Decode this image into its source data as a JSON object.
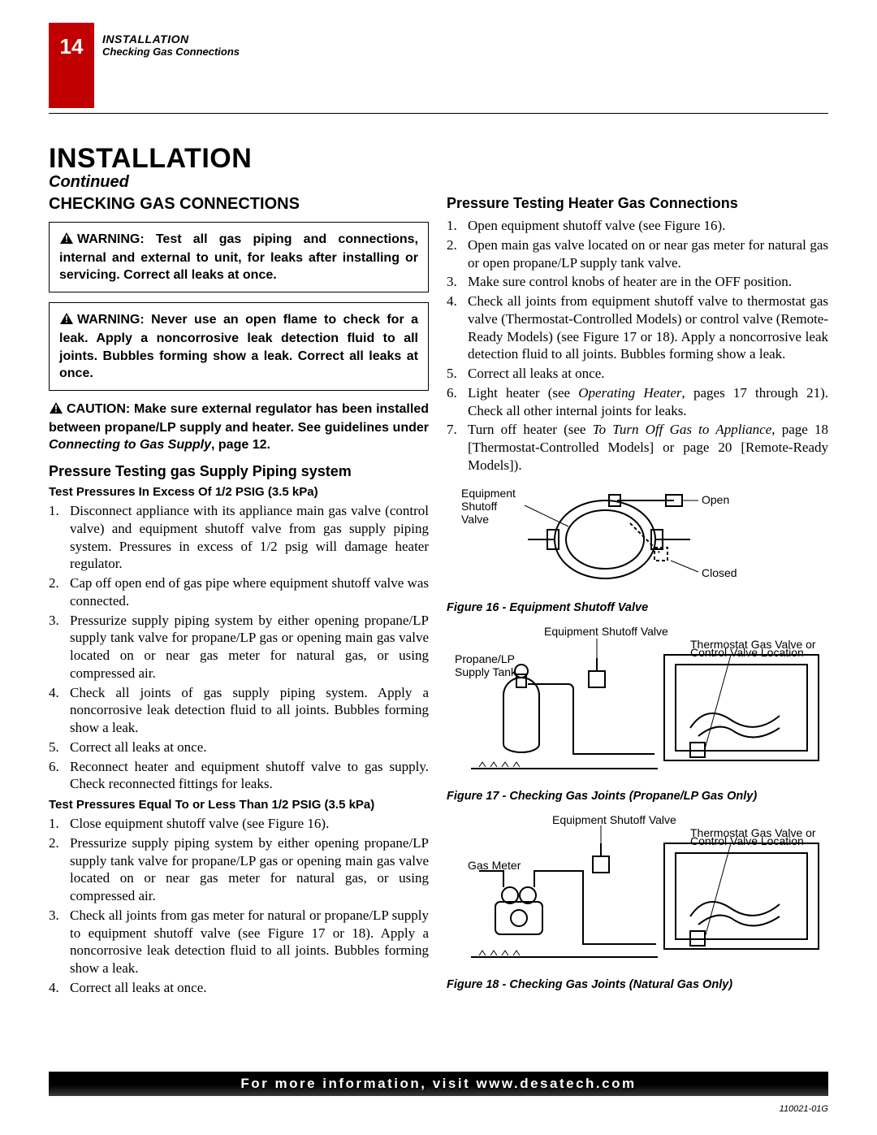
{
  "page_number": "14",
  "header": {
    "line1": "INSTALLATION",
    "line2": "Checking Gas Connections"
  },
  "title": "INSTALLATION",
  "continued": "Continued",
  "left": {
    "section_title": "CHECKING GAS CONNECTIONS",
    "warning1": "WARNING: Test all gas piping and connections, internal and external to unit, for leaks after installing or servicing. Correct all leaks at once.",
    "warning2": "WARNING: Never use an open flame to check for a leak. Apply a noncorrosive leak detection fluid to all joints. Bubbles forming show a leak. Correct all leaks at once.",
    "caution_pre": "CAUTION: Make sure external regulator has been installed between propane/LP supply and heater. See guidelines under ",
    "caution_ital": "Connecting to Gas Supply",
    "caution_post": ", page 12.",
    "h3_a": "Pressure Testing gas Supply Piping system",
    "h4_a": "Test Pressures In Excess Of 1/2 PSIG (3.5 kPa)",
    "list_a": [
      "Disconnect appliance with its appliance main gas valve (control valve) and equipment shutoff valve from gas supply piping system. Pressures in excess of 1/2 psig will damage heater regulator.",
      "Cap off open end of gas pipe where equipment shutoff valve was connected.",
      "Pressurize supply piping system by either opening propane/LP supply tank valve for propane/LP gas or opening main gas valve located on or near gas meter for natural gas, or using compressed air.",
      "Check all joints of gas supply piping system. Apply a noncorrosive leak detection fluid to all joints. Bubbles forming show a leak.",
      "Correct all leaks at once.",
      "Reconnect heater and equipment shutoff valve to gas supply. Check reconnected fittings for leaks."
    ],
    "h4_b": "Test Pressures Equal To or Less Than 1/2 PSIG (3.5 kPa)",
    "list_b": [
      "Close equipment shutoff valve (see Figure 16).",
      "Pressurize supply piping system by either opening propane/LP supply tank valve for propane/LP gas or opening main gas valve located on or near gas meter for natural gas, or using compressed air.",
      "Check all joints from gas meter for natural or propane/LP supply to equipment shutoff valve (see Figure 17 or 18). Apply a noncorrosive leak detection fluid to all joints. Bubbles forming show a leak.",
      "Correct all leaks at once."
    ]
  },
  "right": {
    "h3": "Pressure Testing Heater Gas Connections",
    "list": [
      {
        "text": "Open equipment shutoff valve (see Figure 16)."
      },
      {
        "text": "Open main gas valve located on or near gas meter for natural gas or open propane/LP supply tank valve."
      },
      {
        "text": "Make sure control knobs of heater are in the OFF position."
      },
      {
        "text": "Check all joints from equipment shutoff valve to thermostat gas valve (Thermostat-Controlled Models) or control valve (Remote-Ready Models) (see Figure 17 or 18). Apply a noncorrosive leak detection fluid to all joints. Bubbles forming show a leak."
      },
      {
        "text": "Correct all leaks at once."
      },
      {
        "pre": "Light heater (see ",
        "ital": "Operating Heater",
        "post": ", pages 17 through 21). Check all other internal joints for leaks."
      },
      {
        "pre": "Turn off heater (see ",
        "ital": "To Turn Off Gas to Appliance",
        "post": ", page 18 [Thermostat-Controlled Models] or page 20 [Remote-Ready Models])."
      }
    ],
    "fig16": {
      "caption": "Figure 16 - Equipment Shutoff Valve",
      "labels": {
        "esv": "Equipment\nShutoff\nValve",
        "open": "Open",
        "closed": "Closed"
      }
    },
    "fig17": {
      "caption": "Figure 17 - Checking Gas Joints (Propane/LP Gas Only)",
      "labels": {
        "esv": "Equipment Shutoff Valve",
        "tank": "Propane/LP\nSupply Tank",
        "valve": "Thermostat Gas Valve or\nControl Valve Location"
      }
    },
    "fig18": {
      "caption": "Figure 18 - Checking Gas Joints (Natural Gas Only)",
      "labels": {
        "esv": "Equipment Shutoff Valve",
        "meter": "Gas Meter",
        "valve": "Thermostat Gas Valve or\nControl Valve Location"
      }
    }
  },
  "footer": "For more information, visit www.desatech.com",
  "doc_code": "110021-01G",
  "colors": {
    "red": "#c00000",
    "black": "#000000"
  }
}
